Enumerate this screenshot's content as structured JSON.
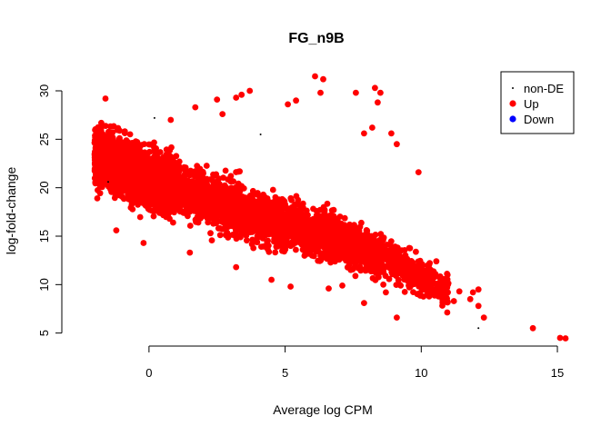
{
  "chart_data": {
    "type": "scatter",
    "title": "FG_n9B",
    "xlabel": "Average log CPM",
    "ylabel": "log-fold-change",
    "xlim": [
      -2.2,
      15.5
    ],
    "ylim": [
      4.5,
      31.5
    ],
    "x_ticks": [
      0,
      5,
      10,
      15
    ],
    "y_ticks": [
      5,
      10,
      15,
      20,
      25,
      30
    ],
    "grid": false,
    "legend": {
      "position": "top-right",
      "entries": [
        {
          "label": "non-DE",
          "color": "#000000",
          "marker": "small-dot"
        },
        {
          "label": "Up",
          "color": "#ff0000",
          "marker": "dot"
        },
        {
          "label": "Down",
          "color": "#0000ff",
          "marker": "dot"
        }
      ]
    },
    "series": [
      {
        "name": "Up",
        "color": "#ff0000",
        "trend": {
          "x": [
            -2,
            0,
            2,
            4,
            6,
            8,
            9.5,
            11,
            12.2
          ],
          "y": [
            23.5,
            21,
            19,
            17,
            15.5,
            13.5,
            11.5,
            9.5,
            8
          ]
        },
        "points": [
          {
            "x": 6.1,
            "y": 31.5
          },
          {
            "x": 6.4,
            "y": 31.2
          },
          {
            "x": 6.3,
            "y": 29.8
          },
          {
            "x": 7.6,
            "y": 29.8
          },
          {
            "x": 8.3,
            "y": 30.3
          },
          {
            "x": 8.5,
            "y": 29.8
          },
          {
            "x": 3.7,
            "y": 30
          },
          {
            "x": 3.4,
            "y": 29.6
          },
          {
            "x": 3.2,
            "y": 29.3
          },
          {
            "x": 2.5,
            "y": 29.1
          },
          {
            "x": 5.4,
            "y": 29
          },
          {
            "x": -1.6,
            "y": 29.2
          },
          {
            "x": 8.4,
            "y": 28.8
          },
          {
            "x": 5.1,
            "y": 28.6
          },
          {
            "x": 1.7,
            "y": 28.3
          },
          {
            "x": 0.8,
            "y": 27
          },
          {
            "x": 2.7,
            "y": 27.6
          },
          {
            "x": 8.9,
            "y": 25.6
          },
          {
            "x": 9.1,
            "y": 24.5
          },
          {
            "x": 9.9,
            "y": 21.6
          },
          {
            "x": 7.9,
            "y": 25.6
          },
          {
            "x": 8.2,
            "y": 26.2
          },
          {
            "x": 10.0,
            "y": 11.5
          },
          {
            "x": 10.5,
            "y": 10.8
          },
          {
            "x": 10.9,
            "y": 9.5
          },
          {
            "x": 11.4,
            "y": 9.3
          },
          {
            "x": 11.9,
            "y": 9.2
          },
          {
            "x": 12.1,
            "y": 9.5
          },
          {
            "x": 11.8,
            "y": 8.5
          },
          {
            "x": 11.2,
            "y": 8.3
          },
          {
            "x": 12.1,
            "y": 7.8
          },
          {
            "x": 12.3,
            "y": 6.6
          },
          {
            "x": 14.1,
            "y": 5.5
          },
          {
            "x": 15.1,
            "y": 4.5
          },
          {
            "x": 15.3,
            "y": 4.45
          },
          {
            "x": 9.1,
            "y": 6.6
          },
          {
            "x": 7.9,
            "y": 8.1
          },
          {
            "x": 5.2,
            "y": 9.8
          },
          {
            "x": 4.5,
            "y": 10.5
          },
          {
            "x": 3.2,
            "y": 11.8
          },
          {
            "x": 1.5,
            "y": 13.3
          },
          {
            "x": -0.2,
            "y": 14.3
          },
          {
            "x": -1.2,
            "y": 15.6
          },
          {
            "x": -1.9,
            "y": 18.9
          },
          {
            "x": 7.1,
            "y": 9.9
          },
          {
            "x": 6.6,
            "y": 9.6
          },
          {
            "x": 9.6,
            "y": 9.8
          },
          {
            "x": 8.7,
            "y": 9.2
          }
        ]
      },
      {
        "name": "non-DE",
        "color": "#000000",
        "points": [
          {
            "x": 12.1,
            "y": 5.5
          },
          {
            "x": 4.1,
            "y": 25.5
          },
          {
            "x": 0.2,
            "y": 27.2
          },
          {
            "x": -1.5,
            "y": 20.6
          }
        ]
      }
    ]
  }
}
